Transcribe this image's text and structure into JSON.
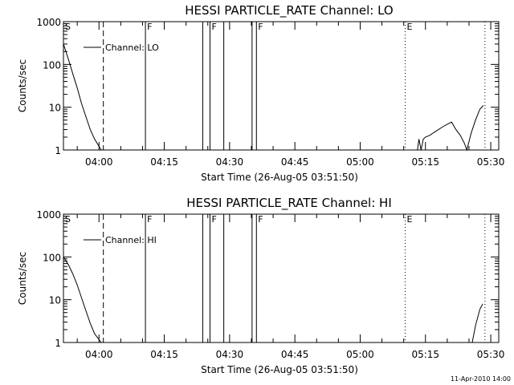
{
  "chart_data": [
    {
      "type": "line",
      "title": "HESSI PARTICLE_RATE Channel: LO",
      "xlabel": "Start Time (26-Aug-05 03:51:50)",
      "ylabel": "Counts/sec",
      "xlim": [
        "03:51:50",
        "05:31:50"
      ],
      "ylim": [
        1,
        1000
      ],
      "yscale": "log",
      "xticks": [
        "04:00",
        "04:15",
        "04:30",
        "04:45",
        "05:00",
        "05:15",
        "05:30"
      ],
      "yticks": [
        "1",
        "10",
        "100",
        "1000"
      ],
      "legend": {
        "label": "Channel: LO",
        "placement": "top-left"
      },
      "series": [
        {
          "name": "Channel: LO",
          "x": [
            "03:51:50",
            "03:53:00",
            "03:54:00",
            "03:55:00",
            "03:56:00",
            "03:57:00",
            "03:58:00",
            "03:59:00",
            "04:00:30",
            "05:13:10",
            "05:13:30",
            "05:14:00",
            "05:14:30",
            "05:15:00",
            "05:16:00",
            "05:17:00",
            "05:18:00",
            "05:19:00",
            "05:20:00",
            "05:21:00",
            "05:22:00",
            "05:23:00",
            "05:24:00",
            "05:24:30",
            "05:25:30",
            "05:26:30",
            "05:27:30",
            "05:28:20"
          ],
          "y": [
            300,
            130,
            60,
            28,
            12,
            6,
            3,
            1.8,
            1,
            1,
            1.8,
            1,
            1.8,
            2,
            2.2,
            2.6,
            3,
            3.5,
            4,
            4.5,
            3,
            2.2,
            1.4,
            1,
            2.5,
            5,
            9,
            11
          ]
        }
      ],
      "flags": [
        {
          "label": "S",
          "time": "03:51:50",
          "style": "none"
        },
        {
          "label": "",
          "time": "04:01:00",
          "style": "dashed"
        },
        {
          "label": "F",
          "time": "04:10:40",
          "style": "solid"
        },
        {
          "label": "",
          "time": "04:23:50",
          "style": "solid"
        },
        {
          "label": "F",
          "time": "04:25:30",
          "style": "solid"
        },
        {
          "label": "",
          "time": "04:28:40",
          "style": "solid"
        },
        {
          "label": "",
          "time": "04:35:10",
          "style": "solid"
        },
        {
          "label": "F",
          "time": "04:36:10",
          "style": "solid"
        },
        {
          "label": "E",
          "time": "05:10:20",
          "style": "dotted"
        },
        {
          "label": "",
          "time": "05:28:40",
          "style": "dotted"
        }
      ]
    },
    {
      "type": "line",
      "title": "HESSI PARTICLE_RATE Channel: HI",
      "xlabel": "Start Time (26-Aug-05 03:51:50)",
      "ylabel": "Counts/sec",
      "xlim": [
        "03:51:50",
        "05:31:50"
      ],
      "ylim": [
        1,
        1000
      ],
      "yscale": "log",
      "xticks": [
        "04:00",
        "04:15",
        "04:30",
        "04:45",
        "05:00",
        "05:15",
        "05:30"
      ],
      "yticks": [
        "1",
        "10",
        "100",
        "1000"
      ],
      "legend": {
        "label": "Channel: HI",
        "placement": "top-left"
      },
      "series": [
        {
          "name": "Channel: HI",
          "x": [
            "03:51:50",
            "03:53:00",
            "03:54:00",
            "03:55:00",
            "03:56:00",
            "03:57:00",
            "03:58:00",
            "03:59:00",
            "04:00:30",
            "05:25:45",
            "05:26:30",
            "05:27:30",
            "05:28:10"
          ],
          "y": [
            100,
            65,
            40,
            22,
            11,
            5.5,
            2.8,
            1.6,
            1,
            1,
            2.5,
            6,
            8
          ]
        }
      ],
      "flags": [
        {
          "label": "S",
          "time": "03:51:50",
          "style": "none"
        },
        {
          "label": "",
          "time": "04:01:00",
          "style": "dashed"
        },
        {
          "label": "F",
          "time": "04:10:40",
          "style": "solid"
        },
        {
          "label": "",
          "time": "04:23:50",
          "style": "solid"
        },
        {
          "label": "F",
          "time": "04:25:30",
          "style": "solid"
        },
        {
          "label": "",
          "time": "04:28:40",
          "style": "solid"
        },
        {
          "label": "",
          "time": "04:35:10",
          "style": "solid"
        },
        {
          "label": "F",
          "time": "04:36:10",
          "style": "solid"
        },
        {
          "label": "E",
          "time": "05:10:20",
          "style": "dotted"
        },
        {
          "label": "",
          "time": "05:28:40",
          "style": "dotted"
        }
      ]
    }
  ],
  "footer": {
    "timestamp": "11-Apr-2010 14:00"
  }
}
